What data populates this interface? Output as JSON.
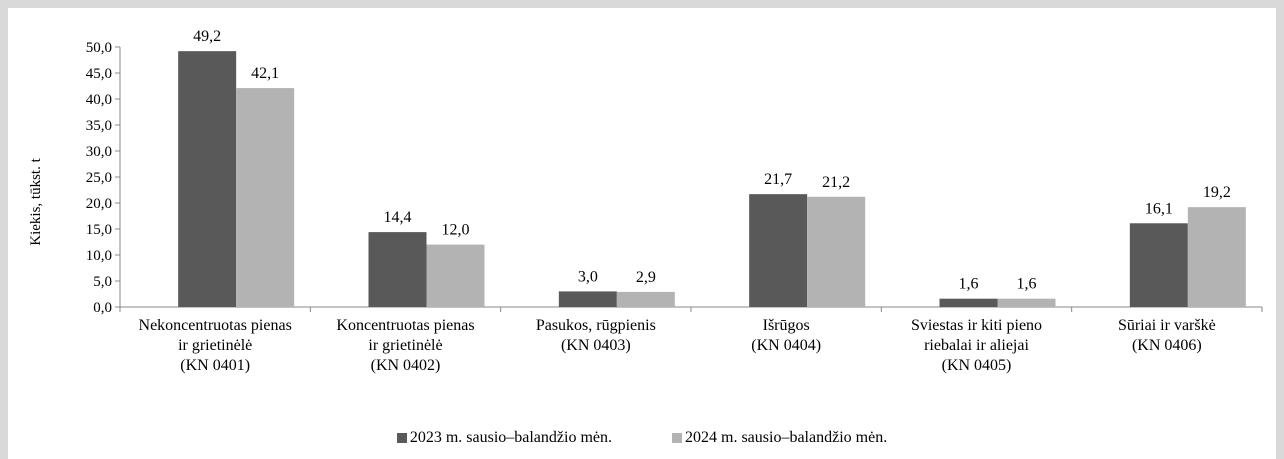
{
  "chart_data": {
    "type": "bar",
    "ylabel": "Kiekis, tūkst. t",
    "xlabel": "",
    "ylim": [
      0,
      50
    ],
    "ytick_step": 5,
    "ytick_labels": [
      "0,0",
      "5,0",
      "10,0",
      "15,0",
      "20,0",
      "25,0",
      "30,0",
      "35,0",
      "40,0",
      "45,0",
      "50,0"
    ],
    "categories": [
      [
        "Nekoncentruotas pienas",
        "ir grietinėlė",
        "(KN 0401)"
      ],
      [
        "Koncentruotas pienas",
        "ir grietinėlė",
        "(KN 0402)"
      ],
      [
        "Pasukos, rūgpienis",
        "(KN 0403)"
      ],
      [
        "Išrūgos",
        "(KN 0404)"
      ],
      [
        "Sviestas ir kiti pieno",
        "riebalai ir aliejai",
        "(KN 0405)"
      ],
      [
        "Sūriai ir varškė",
        "(KN 0406)"
      ]
    ],
    "series": [
      {
        "name": "2023 m. sausio–balandžio mėn.",
        "color": "#595959",
        "values": [
          49.2,
          14.4,
          3.0,
          21.7,
          1.6,
          16.1
        ],
        "labels": [
          "49,2",
          "14,4",
          "3,0",
          "21,7",
          "1,6",
          "16,1"
        ]
      },
      {
        "name": "2024 m. sausio–balandžio mėn.",
        "color": "#b3b3b3",
        "values": [
          42.1,
          12.0,
          2.9,
          21.2,
          1.6,
          19.2
        ],
        "labels": [
          "42,1",
          "12,0",
          "2,9",
          "21,2",
          "1,6",
          "19,2"
        ]
      }
    ],
    "grid": false,
    "legend_position": "bottom"
  }
}
